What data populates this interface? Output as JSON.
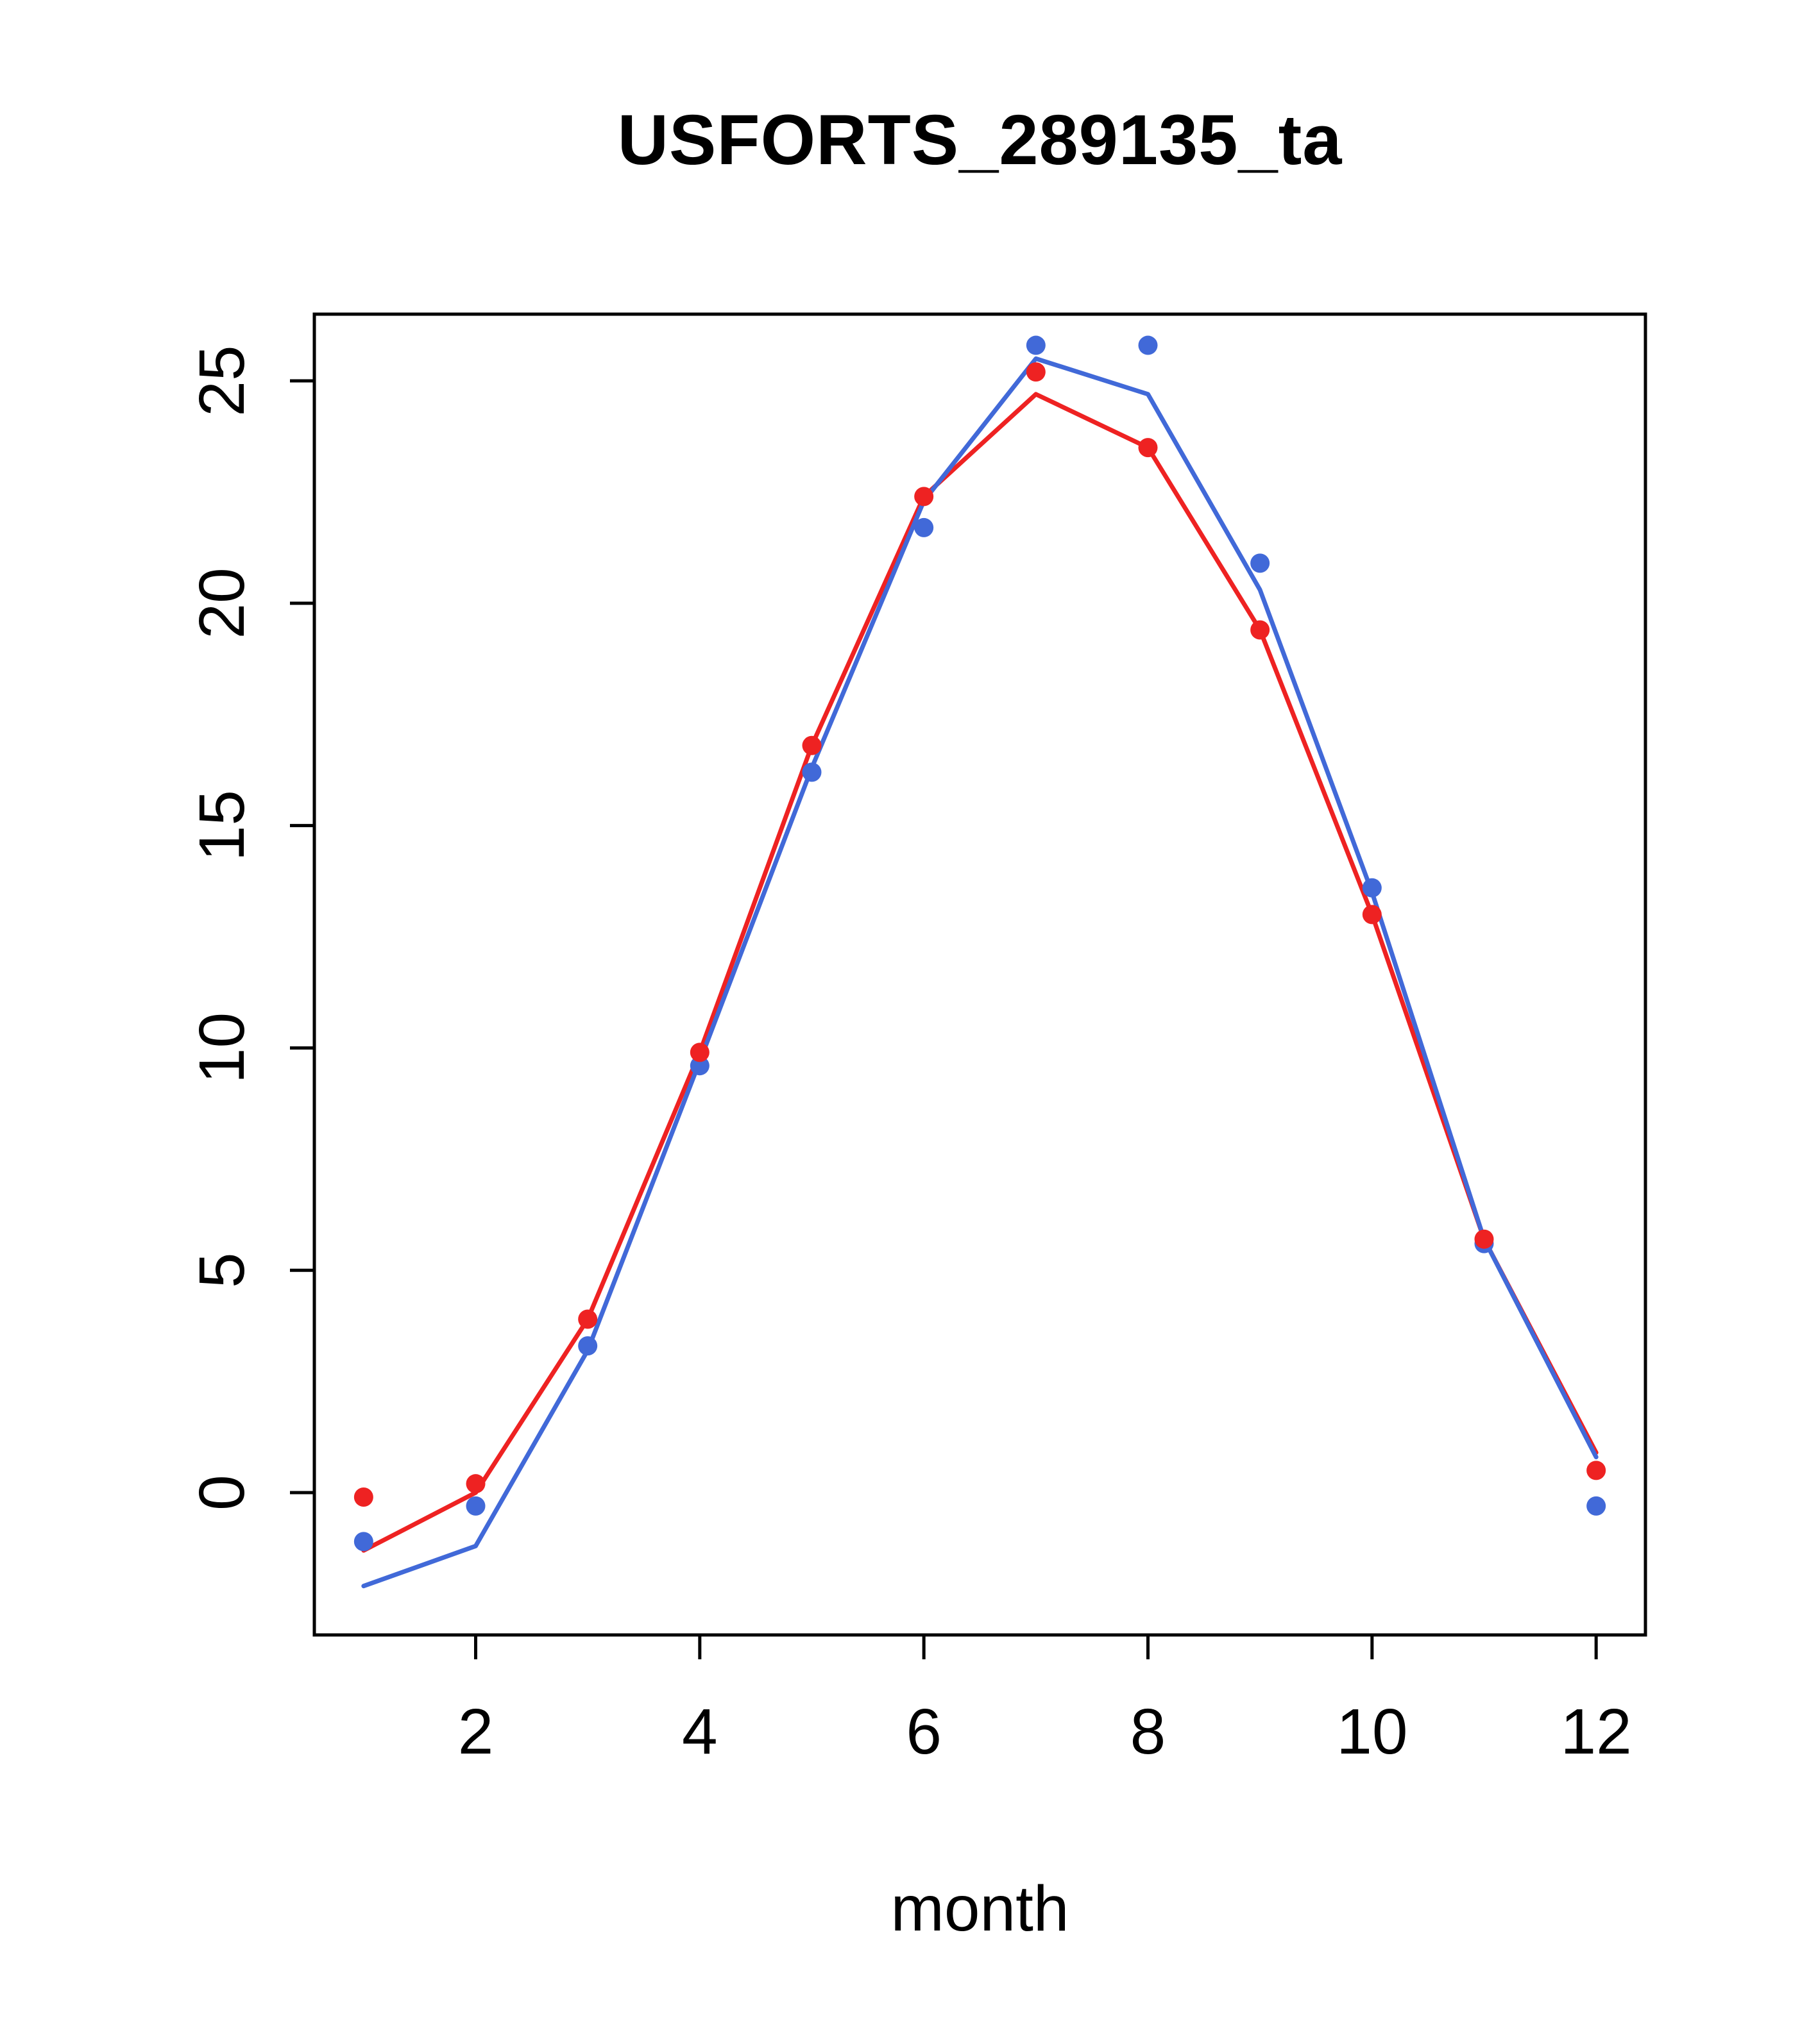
{
  "chart_data": {
    "type": "line",
    "title": "USFORTS_289135_ta",
    "xlabel": "month",
    "ylabel": "",
    "x": [
      1,
      2,
      3,
      4,
      5,
      6,
      7,
      8,
      9,
      10,
      11,
      12
    ],
    "xlim": [
      0.56,
      12.44
    ],
    "ylim": [
      -3.2,
      26.5
    ],
    "x_ticks": [
      2,
      4,
      6,
      8,
      10,
      12
    ],
    "y_ticks": [
      0,
      5,
      10,
      15,
      20,
      25
    ],
    "grid": false,
    "legend": "none",
    "colors": {
      "red": "#EE2222",
      "blue": "#4169D8",
      "axis": "#000000"
    },
    "series": [
      {
        "name": "red-line",
        "style": "line",
        "color": "#EE2222",
        "values": [
          -1.3,
          0.0,
          3.9,
          9.9,
          16.8,
          22.4,
          24.7,
          23.5,
          19.4,
          13.0,
          5.7,
          0.9
        ]
      },
      {
        "name": "blue-line",
        "style": "line",
        "color": "#4169D8",
        "values": [
          -2.1,
          -1.2,
          3.2,
          9.7,
          16.3,
          22.3,
          25.5,
          24.7,
          20.3,
          13.5,
          5.7,
          0.8
        ]
      },
      {
        "name": "blue-points",
        "style": "points",
        "color": "#4169D8",
        "values": [
          -1.1,
          -0.3,
          3.3,
          9.6,
          16.2,
          21.7,
          25.8,
          25.8,
          20.9,
          13.6,
          5.6,
          -0.3
        ]
      },
      {
        "name": "red-points",
        "style": "points",
        "color": "#EE2222",
        "values": [
          -0.1,
          0.2,
          3.9,
          9.9,
          16.8,
          22.4,
          25.2,
          23.5,
          19.4,
          13.0,
          5.7,
          0.5
        ]
      }
    ]
  }
}
